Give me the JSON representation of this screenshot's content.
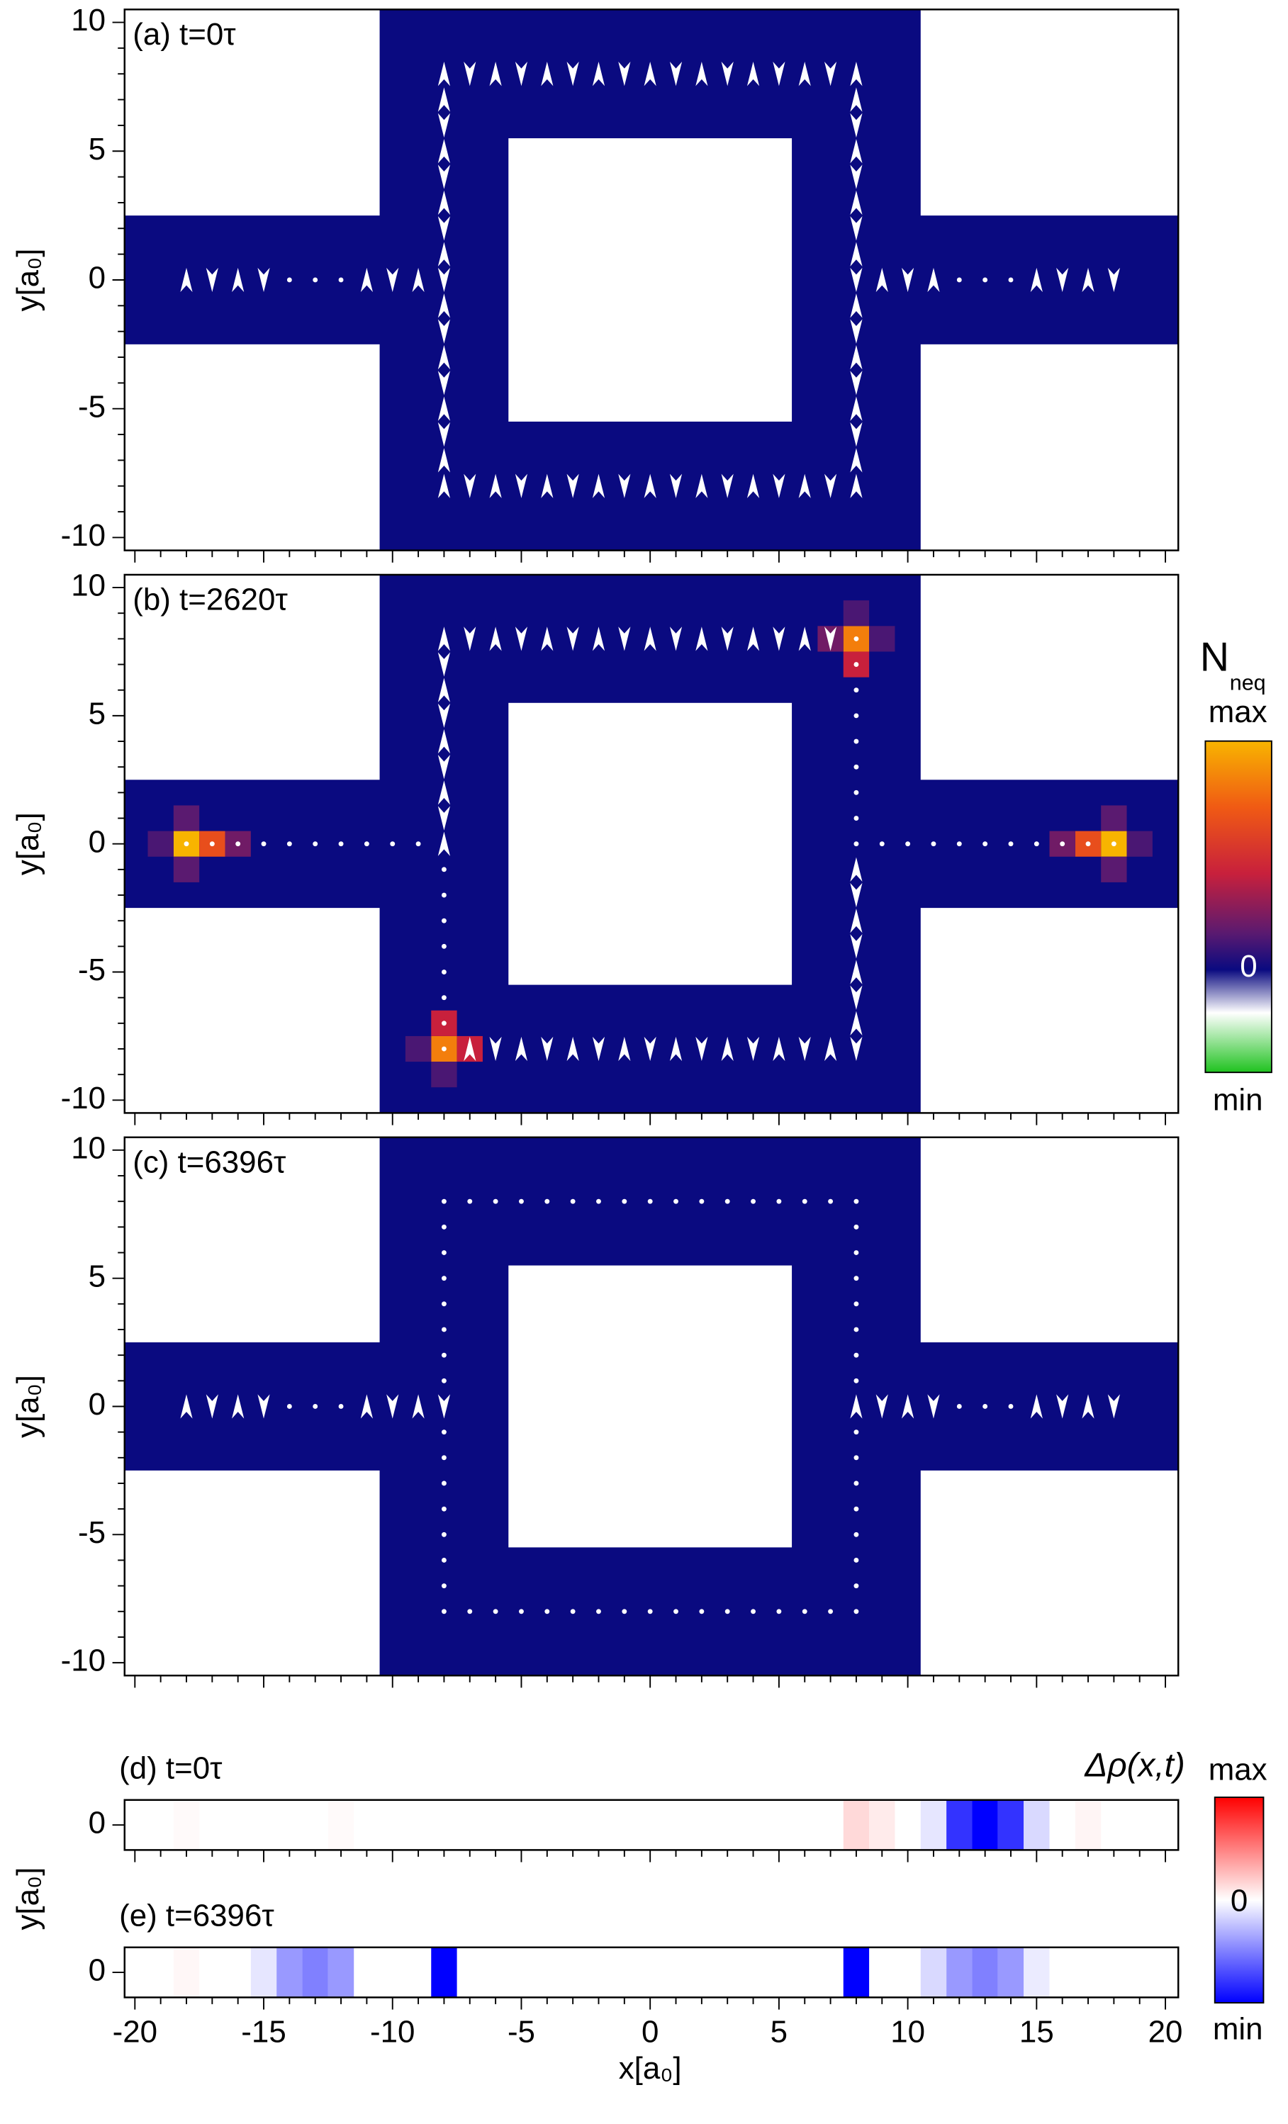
{
  "chart_data": [
    {
      "type": "heatmap",
      "title": "(a) t=0τ",
      "ylabel": "y[a₀]",
      "xlim": [
        -20.4,
        20.5
      ],
      "ylim": [
        -10.5,
        10.5
      ],
      "yticks": [
        -10,
        -5,
        0,
        5,
        10
      ],
      "xticks": [
        -20,
        -15,
        -10,
        -5,
        0,
        5,
        10,
        15,
        20
      ],
      "xminorticks": [
        -19,
        -18,
        -17,
        -16,
        -14,
        -13,
        -12,
        -11,
        -9,
        -8,
        -7,
        -6,
        -4,
        -3,
        -2,
        -1,
        1,
        2,
        3,
        4,
        6,
        7,
        8,
        9,
        11,
        12,
        13,
        14,
        16,
        17,
        18,
        19
      ],
      "yminorticks": [
        -9,
        -8,
        -7,
        -6,
        -4,
        -3,
        -2,
        -1,
        1,
        2,
        3,
        4,
        6,
        7,
        8,
        9
      ],
      "device": {
        "lead": 2.5,
        "ring_outer": 10.5,
        "ring_inner": 5.5
      },
      "markers": [
        {
          "kind": "arrows",
          "from": [
            -18,
            0
          ],
          "to": [
            -15,
            0
          ]
        },
        {
          "kind": "dots",
          "from": [
            -14,
            0
          ],
          "to": [
            -12,
            0
          ]
        },
        {
          "kind": "arrows",
          "from": [
            -11,
            0
          ],
          "to": [
            -9,
            0
          ]
        },
        {
          "kind": "arrows",
          "from": [
            -8,
            8
          ],
          "to": [
            8,
            8
          ]
        },
        {
          "kind": "arrows",
          "from": [
            -8,
            -8
          ],
          "to": [
            8,
            -8
          ]
        },
        {
          "kind": "arrows",
          "from": [
            -8,
            -7
          ],
          "to": [
            -8,
            7
          ]
        },
        {
          "kind": "arrows",
          "from": [
            8,
            -7
          ],
          "to": [
            8,
            7
          ]
        },
        {
          "kind": "arrows",
          "from": [
            9,
            0
          ],
          "to": [
            11,
            0
          ]
        },
        {
          "kind": "dots",
          "from": [
            12,
            0
          ],
          "to": [
            14,
            0
          ]
        },
        {
          "kind": "arrows",
          "from": [
            15,
            0
          ],
          "to": [
            18,
            0
          ]
        }
      ],
      "heat": {
        "x": [],
        "y": [],
        "values": []
      }
    },
    {
      "type": "heatmap",
      "title": "(b) t=2620τ",
      "ylabel": "y[a₀]",
      "xlim": [
        -20.4,
        20.5
      ],
      "ylim": [
        -10.5,
        10.5
      ],
      "yticks": [
        -10,
        -5,
        0,
        5,
        10
      ],
      "xticks": [
        -20,
        -15,
        -10,
        -5,
        0,
        5,
        10,
        15,
        20
      ],
      "xminorticks": [
        -19,
        -18,
        -17,
        -16,
        -14,
        -13,
        -12,
        -11,
        -9,
        -8,
        -7,
        -6,
        -4,
        -3,
        -2,
        -1,
        1,
        2,
        3,
        4,
        6,
        7,
        8,
        9,
        11,
        12,
        13,
        14,
        16,
        17,
        18,
        19
      ],
      "yminorticks": [
        -9,
        -8,
        -7,
        -6,
        -4,
        -3,
        -2,
        -1,
        1,
        2,
        3,
        4,
        6,
        7,
        8,
        9
      ],
      "device": {
        "lead": 2.5,
        "ring_outer": 10.5,
        "ring_inner": 5.5
      },
      "markers": [
        {
          "kind": "dots",
          "from": [
            -18,
            0
          ],
          "to": [
            -9,
            0
          ]
        },
        {
          "kind": "dots",
          "from": [
            9,
            0
          ],
          "to": [
            18,
            0
          ]
        },
        {
          "kind": "arrows",
          "from": [
            -8,
            8
          ],
          "to": [
            7,
            8
          ]
        },
        {
          "kind": "dots",
          "from": [
            8,
            8
          ],
          "to": [
            8,
            0
          ]
        },
        {
          "kind": "arrows",
          "from": [
            8,
            -1
          ],
          "to": [
            8,
            -7
          ]
        },
        {
          "kind": "arrows",
          "from": [
            -8,
            0
          ],
          "to": [
            -8,
            7
          ]
        },
        {
          "kind": "dots",
          "from": [
            -8,
            -1
          ],
          "to": [
            -8,
            -8
          ]
        },
        {
          "kind": "arrows",
          "from": [
            -7,
            -8
          ],
          "to": [
            8,
            -8
          ]
        }
      ],
      "heat": {
        "x": [
          -18,
          -17,
          -16,
          -19,
          -18,
          -18,
          18,
          17,
          16,
          19,
          18,
          18,
          8,
          7,
          8,
          9,
          8,
          -8,
          -7,
          -8,
          -9,
          -8
        ],
        "y": [
          0,
          0,
          0,
          0,
          1,
          -1,
          0,
          0,
          0,
          0,
          1,
          -1,
          8,
          8,
          7,
          8,
          9,
          -8,
          -8,
          -7,
          -8,
          -9
        ],
        "values": [
          1,
          0.7,
          0.3,
          0.2,
          0.25,
          0.25,
          1,
          0.7,
          0.3,
          0.2,
          0.25,
          0.25,
          0.85,
          0.3,
          0.5,
          0.2,
          0.2,
          0.85,
          0.5,
          0.5,
          0.2,
          0.2
        ]
      }
    },
    {
      "type": "heatmap",
      "title": "(c) t=6396τ",
      "ylabel": "y[a₀]",
      "xlim": [
        -20.4,
        20.5
      ],
      "ylim": [
        -10.5,
        10.5
      ],
      "yticks": [
        -10,
        -5,
        0,
        5,
        10
      ],
      "xticks": [
        -20,
        -15,
        -10,
        -5,
        0,
        5,
        10,
        15,
        20
      ],
      "xminorticks": [
        -19,
        -18,
        -17,
        -16,
        -14,
        -13,
        -12,
        -11,
        -9,
        -8,
        -7,
        -6,
        -4,
        -3,
        -2,
        -1,
        1,
        2,
        3,
        4,
        6,
        7,
        8,
        9,
        11,
        12,
        13,
        14,
        16,
        17,
        18,
        19
      ],
      "yminorticks": [
        -9,
        -8,
        -7,
        -6,
        -4,
        -3,
        -2,
        -1,
        1,
        2,
        3,
        4,
        6,
        7,
        8,
        9
      ],
      "device": {
        "lead": 2.5,
        "ring_outer": 10.5,
        "ring_inner": 5.5
      },
      "markers": [
        {
          "kind": "arrows",
          "from": [
            -18,
            0
          ],
          "to": [
            -15,
            0
          ]
        },
        {
          "kind": "dots",
          "from": [
            -14,
            0
          ],
          "to": [
            -12,
            0
          ]
        },
        {
          "kind": "arrows",
          "from": [
            -11,
            0
          ],
          "to": [
            -8,
            0
          ]
        },
        {
          "kind": "dots",
          "from": [
            -8,
            8
          ],
          "to": [
            8,
            8
          ]
        },
        {
          "kind": "dots",
          "from": [
            -8,
            -8
          ],
          "to": [
            8,
            -8
          ]
        },
        {
          "kind": "dots",
          "from": [
            -8,
            1
          ],
          "to": [
            -8,
            7
          ]
        },
        {
          "kind": "dots",
          "from": [
            -8,
            -1
          ],
          "to": [
            -8,
            -7
          ]
        },
        {
          "kind": "dots",
          "from": [
            8,
            1
          ],
          "to": [
            8,
            7
          ]
        },
        {
          "kind": "dots",
          "from": [
            8,
            -1
          ],
          "to": [
            8,
            -7
          ]
        },
        {
          "kind": "arrows",
          "from": [
            8,
            0
          ],
          "to": [
            11,
            0
          ]
        },
        {
          "kind": "dots",
          "from": [
            12,
            0
          ],
          "to": [
            14,
            0
          ]
        },
        {
          "kind": "arrows",
          "from": [
            15,
            0
          ],
          "to": [
            18,
            0
          ]
        }
      ],
      "heat": {
        "x": [],
        "y": [],
        "values": []
      }
    },
    {
      "type": "strip",
      "title": "(d) t=0τ",
      "xlim": [
        -20.4,
        20.5
      ],
      "ylim": [
        -1,
        1
      ],
      "yticks": [
        0
      ],
      "xticks": [
        -20,
        -15,
        -10,
        -5,
        0,
        5,
        10,
        15,
        20
      ],
      "xminorticks": [
        -19,
        -18,
        -17,
        -16,
        -14,
        -13,
        -12,
        -11,
        -9,
        -8,
        -7,
        -6,
        -4,
        -3,
        -2,
        -1,
        1,
        2,
        3,
        4,
        6,
        7,
        8,
        9,
        11,
        12,
        13,
        14,
        16,
        17,
        18,
        19
      ],
      "x": [
        -18,
        -12,
        8,
        9,
        11,
        12,
        13,
        14,
        15,
        17
      ],
      "values": [
        0.02,
        0.02,
        0.15,
        0.08,
        -0.1,
        -0.8,
        -1,
        -0.8,
        -0.15,
        0.04
      ]
    },
    {
      "type": "strip",
      "title": "(e) t=6396τ",
      "xlim": [
        -20.4,
        20.5
      ],
      "ylim": [
        -1,
        1
      ],
      "yticks": [
        0
      ],
      "xticks": [
        {
          "value": -20,
          "label": "-20"
        },
        {
          "value": -15,
          "label": "-15"
        },
        {
          "value": -10,
          "label": "-10"
        },
        {
          "value": -5,
          "label": "-5"
        },
        0,
        5,
        10,
        15,
        20
      ],
      "xminorticks": [
        -19,
        -18,
        -17,
        -16,
        -14,
        -13,
        -12,
        -11,
        -9,
        -8,
        -7,
        -6,
        -4,
        -3,
        -2,
        -1,
        1,
        2,
        3,
        4,
        6,
        7,
        8,
        9,
        11,
        12,
        13,
        14,
        16,
        17,
        18,
        19
      ],
      "xlabel": "x[a₀]",
      "ylabel": "y[a₀]",
      "x": [
        -18,
        -15,
        -14,
        -13,
        -12,
        -8,
        8,
        11,
        12,
        13,
        14,
        15
      ],
      "values": [
        0.03,
        -0.1,
        -0.4,
        -0.5,
        -0.4,
        -1,
        -1,
        -0.15,
        -0.4,
        -0.5,
        -0.4,
        -0.08
      ]
    }
  ],
  "colorbar_n": {
    "label": "N",
    "sub": "neq",
    "max": "max",
    "zero": "0",
    "min": "min",
    "stops": [
      "#f8b400",
      "#f05a14",
      "#c8203c",
      "#5a1a70",
      "#0a0a80",
      "#ffffff",
      "#1fc21f"
    ]
  },
  "colorbar_rho": {
    "label": "Δρ(x,t)",
    "max": "max",
    "zero": "0",
    "min": "min",
    "stops": [
      "#ff0000",
      "#ffffff",
      "#0000ff"
    ]
  },
  "device_color": "#0a0a80"
}
